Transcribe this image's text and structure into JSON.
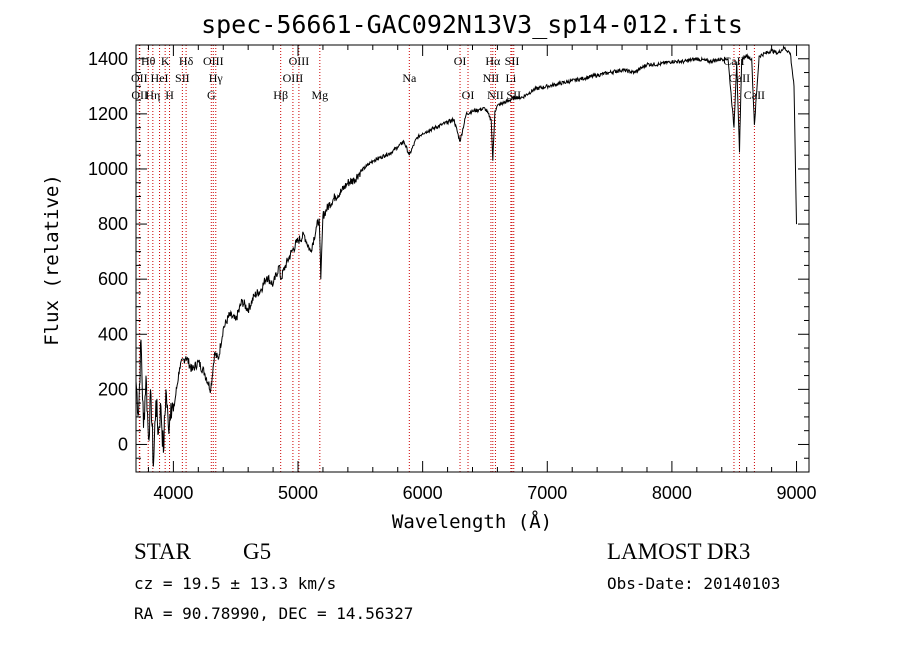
{
  "chart_data": {
    "type": "line",
    "title": "spec-56661-GAC092N13V3_sp14-012.fits",
    "xlabel": "Wavelength (Å)",
    "ylabel": "Flux (relative)",
    "xlim": [
      3700,
      9100
    ],
    "ylim": [
      -100,
      1450
    ],
    "x_ticks": [
      4000,
      5000,
      6000,
      7000,
      8000,
      9000
    ],
    "y_ticks": [
      0,
      200,
      400,
      600,
      800,
      1000,
      1200,
      1400
    ],
    "grid": false,
    "series": [
      {
        "name": "flux",
        "x": [
          3700,
          3720,
          3740,
          3760,
          3780,
          3800,
          3820,
          3840,
          3860,
          3880,
          3900,
          3920,
          3940,
          3960,
          3980,
          4000,
          4050,
          4100,
          4150,
          4200,
          4250,
          4300,
          4330,
          4360,
          4400,
          4450,
          4500,
          4550,
          4600,
          4650,
          4700,
          4750,
          4800,
          4850,
          4861,
          4900,
          4950,
          5000,
          5050,
          5100,
          5150,
          5170,
          5183,
          5200,
          5250,
          5300,
          5350,
          5400,
          5450,
          5500,
          5550,
          5600,
          5650,
          5700,
          5750,
          5800,
          5850,
          5893,
          5950,
          6000,
          6050,
          6100,
          6150,
          6200,
          6250,
          6300,
          6350,
          6400,
          6450,
          6500,
          6550,
          6563,
          6580,
          6600,
          6650,
          6700,
          6750,
          6800,
          6900,
          7000,
          7100,
          7200,
          7300,
          7400,
          7500,
          7600,
          7700,
          7800,
          7900,
          8000,
          8100,
          8200,
          8300,
          8400,
          8450,
          8498,
          8520,
          8542,
          8560,
          8600,
          8640,
          8662,
          8700,
          8750,
          8800,
          8850,
          8900,
          8950,
          8980,
          9000
        ],
        "y": [
          230,
          110,
          380,
          60,
          250,
          20,
          180,
          -80,
          160,
          40,
          140,
          -30,
          200,
          60,
          150,
          120,
          280,
          320,
          270,
          300,
          260,
          200,
          330,
          310,
          420,
          470,
          450,
          520,
          490,
          540,
          560,
          610,
          580,
          650,
          600,
          650,
          700,
          740,
          760,
          700,
          790,
          820,
          600,
          830,
          870,
          900,
          920,
          950,
          960,
          990,
          1010,
          1030,
          1040,
          1050,
          1060,
          1080,
          1100,
          1050,
          1110,
          1130,
          1140,
          1150,
          1160,
          1170,
          1180,
          1100,
          1200,
          1210,
          1215,
          1220,
          1180,
          1030,
          1210,
          1230,
          1240,
          1250,
          1260,
          1260,
          1290,
          1300,
          1310,
          1320,
          1330,
          1340,
          1350,
          1360,
          1350,
          1380,
          1380,
          1390,
          1390,
          1400,
          1390,
          1400,
          1400,
          1150,
          1390,
          1060,
          1400,
          1410,
          1400,
          1160,
          1410,
          1420,
          1430,
          1420,
          1440,
          1420,
          1300,
          800
        ]
      }
    ],
    "line_markers": [
      {
        "name": "Hθ",
        "x": 3798,
        "row": 0
      },
      {
        "name": "OII",
        "x": 3727,
        "row": 1
      },
      {
        "name": "OII",
        "x": 3730,
        "row": 2
      },
      {
        "name": "Hη",
        "x": 3835,
        "row": 2
      },
      {
        "name": "HeI",
        "x": 3889,
        "row": 1
      },
      {
        "name": "K",
        "x": 3934,
        "row": 0
      },
      {
        "name": "H",
        "x": 3969,
        "row": 2
      },
      {
        "name": "SII",
        "x": 4072,
        "row": 1
      },
      {
        "name": "Hδ",
        "x": 4102,
        "row": 0
      },
      {
        "name": "OIII",
        "x": 4320,
        "row": 0
      },
      {
        "name": "Hγ",
        "x": 4340,
        "row": 1
      },
      {
        "name": "G",
        "x": 4304,
        "row": 2
      },
      {
        "name": "Hβ",
        "x": 4861,
        "row": 2
      },
      {
        "name": "OIII",
        "x": 5007,
        "row": 0
      },
      {
        "name": "OIII",
        "x": 4959,
        "row": 1
      },
      {
        "name": "Mg",
        "x": 5175,
        "row": 2
      },
      {
        "name": "Na",
        "x": 5893,
        "row": 1
      },
      {
        "name": "OI",
        "x": 6300,
        "row": 0
      },
      {
        "name": "OI",
        "x": 6364,
        "row": 2
      },
      {
        "name": "Hα",
        "x": 6563,
        "row": 0
      },
      {
        "name": "NII",
        "x": 6548,
        "row": 1
      },
      {
        "name": "NII",
        "x": 6584,
        "row": 2
      },
      {
        "name": "SII",
        "x": 6717,
        "row": 0
      },
      {
        "name": "Li",
        "x": 6708,
        "row": 1
      },
      {
        "name": "SII",
        "x": 6731,
        "row": 2
      },
      {
        "name": "CaII",
        "x": 8498,
        "row": 0
      },
      {
        "name": "CaII",
        "x": 8542,
        "row": 1
      },
      {
        "name": "CaII",
        "x": 8662,
        "row": 2
      }
    ]
  },
  "info": {
    "class": "STAR",
    "subclass": "G5",
    "survey": "LAMOST DR3",
    "cz": "cz = 19.5 ± 13.3 km/s",
    "obs_date": "Obs-Date: 20140103",
    "radec": "RA =  90.78990, DEC =  14.56327"
  }
}
